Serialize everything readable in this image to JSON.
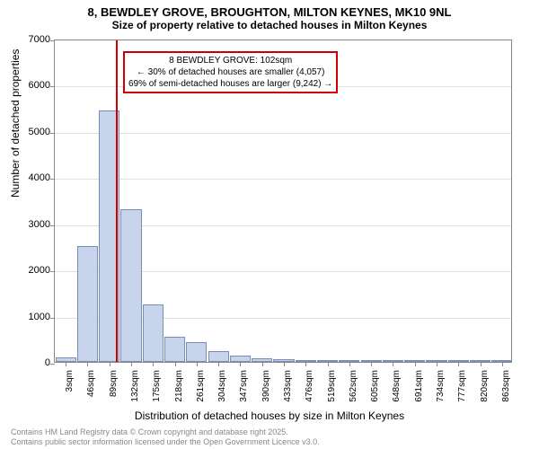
{
  "chart": {
    "type": "histogram",
    "title": "8, BEWDLEY GROVE, BROUGHTON, MILTON KEYNES, MK10 9NL",
    "subtitle": "Size of property relative to detached houses in Milton Keynes",
    "ylabel": "Number of detached properties",
    "xlabel": "Distribution of detached houses by size in Milton Keynes",
    "ylim": [
      0,
      7000
    ],
    "ytick_step": 1000,
    "yticks": [
      0,
      1000,
      2000,
      3000,
      4000,
      5000,
      6000,
      7000
    ],
    "xticks": [
      "3sqm",
      "46sqm",
      "89sqm",
      "132sqm",
      "175sqm",
      "218sqm",
      "261sqm",
      "304sqm",
      "347sqm",
      "390sqm",
      "433sqm",
      "476sqm",
      "519sqm",
      "562sqm",
      "605sqm",
      "648sqm",
      "691sqm",
      "734sqm",
      "777sqm",
      "820sqm",
      "863sqm"
    ],
    "values": [
      100,
      2500,
      5450,
      3300,
      1250,
      550,
      430,
      240,
      130,
      80,
      50,
      30,
      20,
      15,
      10,
      8,
      6,
      5,
      4,
      3,
      2
    ],
    "bar_color": "#c8d4ec",
    "bar_border_color": "#7a8db8",
    "background_color": "#ffffff",
    "grid_color": "#e0e0e0",
    "axis_color": "#888888",
    "bar_width": 0.95,
    "marker": {
      "position_index": 2.3,
      "color": "#cc0000",
      "width": 2
    },
    "annotation": {
      "line1": "8 BEWDLEY GROVE: 102sqm",
      "line2": "← 30% of detached houses are smaller (4,057)",
      "line3": "69% of semi-detached houses are larger (9,242) →",
      "border_color": "#cc0000",
      "fontsize": 10
    },
    "attribution": {
      "line1": "Contains HM Land Registry data © Crown copyright and database right 2025.",
      "line2": "Contains public sector information licensed under the Open Government Licence v3.0."
    }
  }
}
